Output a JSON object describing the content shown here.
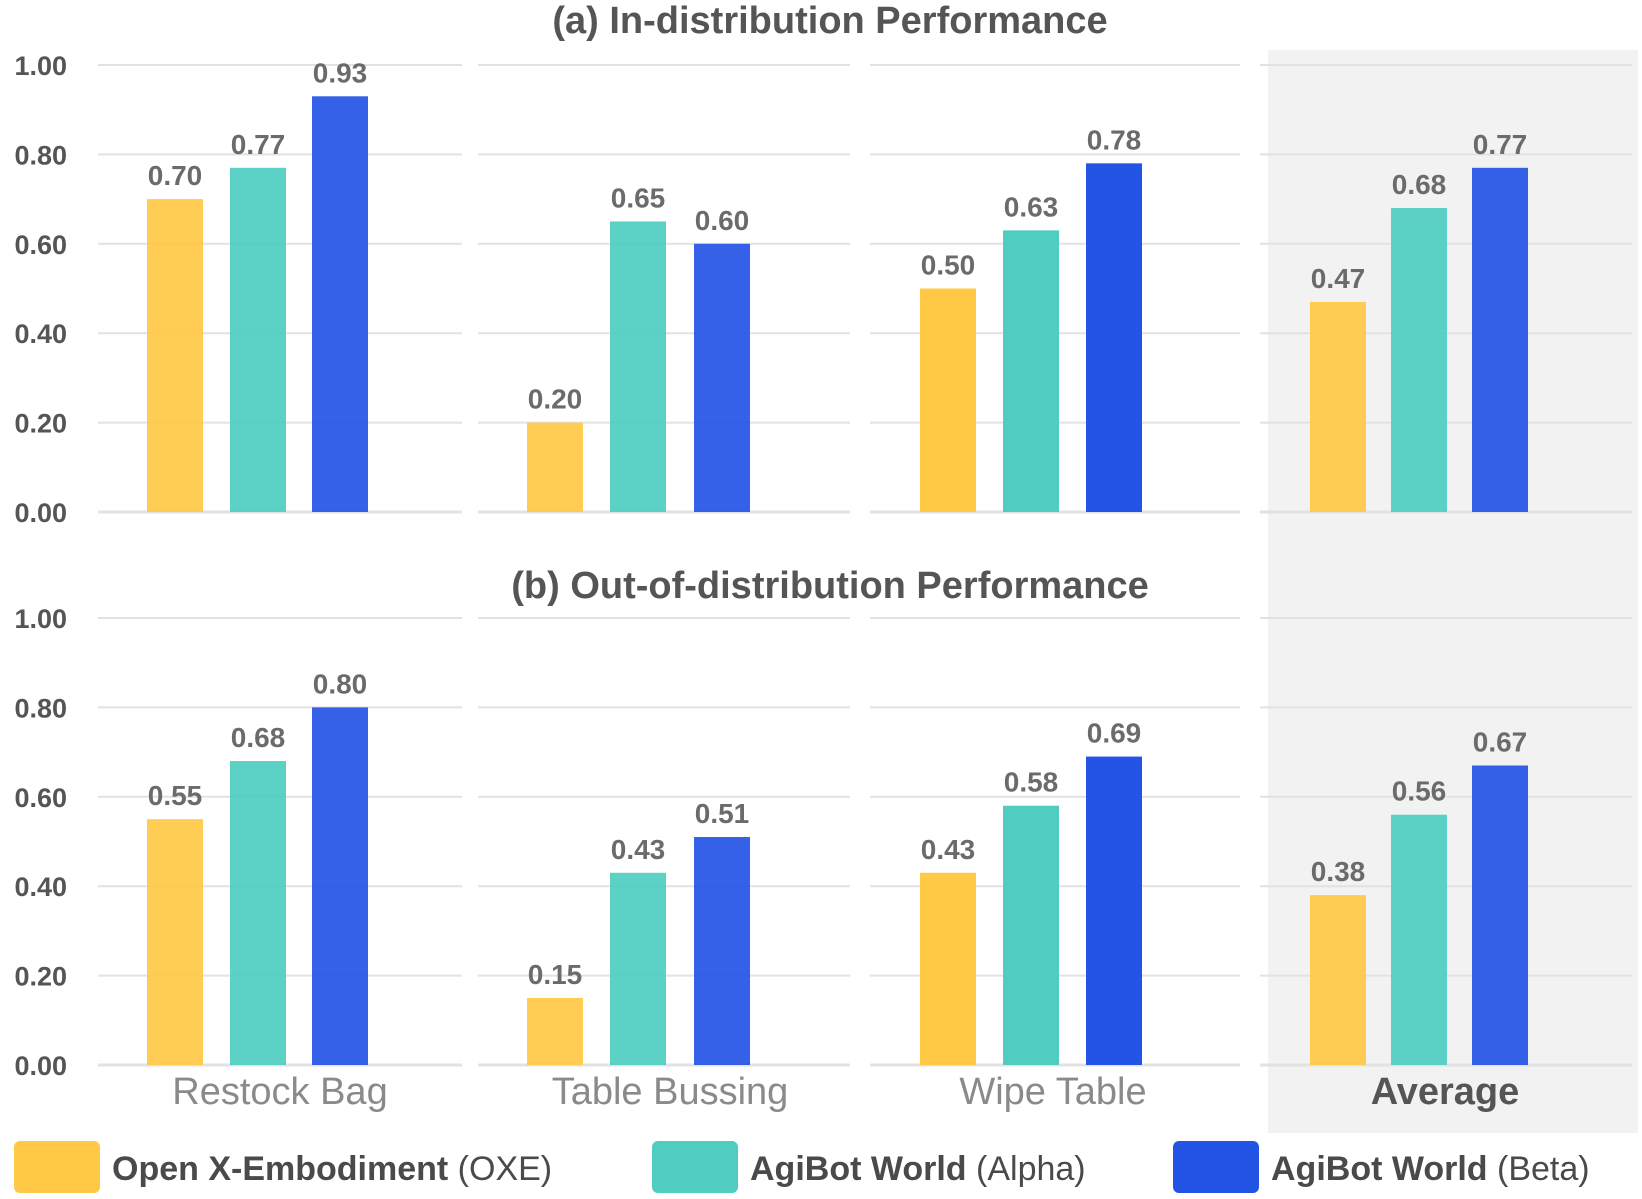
{
  "chart_data": [
    {
      "type": "bar",
      "title": "(a) In-distribution Performance",
      "categories": [
        "Restock Bag",
        "Table Bussing",
        "Wipe Table",
        "Average"
      ],
      "ylim": [
        0,
        1
      ],
      "yticks": [
        "0.00",
        "0.20",
        "0.40",
        "0.60",
        "0.80",
        "1.00"
      ],
      "series": [
        {
          "name": "Open X-Embodiment (OXE)",
          "values": [
            0.7,
            0.2,
            0.5,
            0.47
          ],
          "labels": [
            "0.70",
            "0.20",
            "0.50",
            "0.47"
          ]
        },
        {
          "name": "AgiBot World (Alpha)",
          "values": [
            0.77,
            0.65,
            0.63,
            0.68
          ],
          "labels": [
            "0.77",
            "0.65",
            "0.63",
            "0.68"
          ]
        },
        {
          "name": "AgiBot World (Beta)",
          "values": [
            0.93,
            0.6,
            0.78,
            0.77
          ],
          "labels": [
            "0.93",
            "0.60",
            "0.78",
            "0.77"
          ]
        }
      ]
    },
    {
      "type": "bar",
      "title": "(b) Out-of-distribution Performance",
      "categories": [
        "Restock Bag",
        "Table Bussing",
        "Wipe Table",
        "Average"
      ],
      "ylim": [
        0,
        1
      ],
      "yticks": [
        "0.00",
        "0.20",
        "0.40",
        "0.60",
        "0.80",
        "1.00"
      ],
      "series": [
        {
          "name": "Open X-Embodiment (OXE)",
          "values": [
            0.55,
            0.15,
            0.43,
            0.38
          ],
          "labels": [
            "0.55",
            "0.15",
            "0.43",
            "0.38"
          ]
        },
        {
          "name": "AgiBot World (Alpha)",
          "values": [
            0.68,
            0.43,
            0.58,
            0.56
          ],
          "labels": [
            "0.68",
            "0.43",
            "0.58",
            "0.56"
          ]
        },
        {
          "name": "AgiBot World (Beta)",
          "values": [
            0.8,
            0.51,
            0.69,
            0.67
          ],
          "labels": [
            "0.80",
            "0.51",
            "0.69",
            "0.67"
          ]
        }
      ]
    }
  ],
  "x_labels": [
    "Restock Bag",
    "Table Bussing",
    "Wipe Table",
    "Average"
  ],
  "legend": [
    {
      "bold": "Open X-Embodiment",
      "normal": " (OXE)",
      "color": "#FFC845"
    },
    {
      "bold": "AgiBot World",
      "normal": " (Alpha)",
      "color": "#4ECDC0"
    },
    {
      "bold": "AgiBot World",
      "normal": " (Beta)",
      "color": "#2454E6"
    }
  ],
  "colors": {
    "oxe": "#FFC845",
    "alpha": "#4ECDC0",
    "beta": "#2454E6",
    "highlight": "#F2F2F2",
    "grid": "#E2E2E2"
  }
}
